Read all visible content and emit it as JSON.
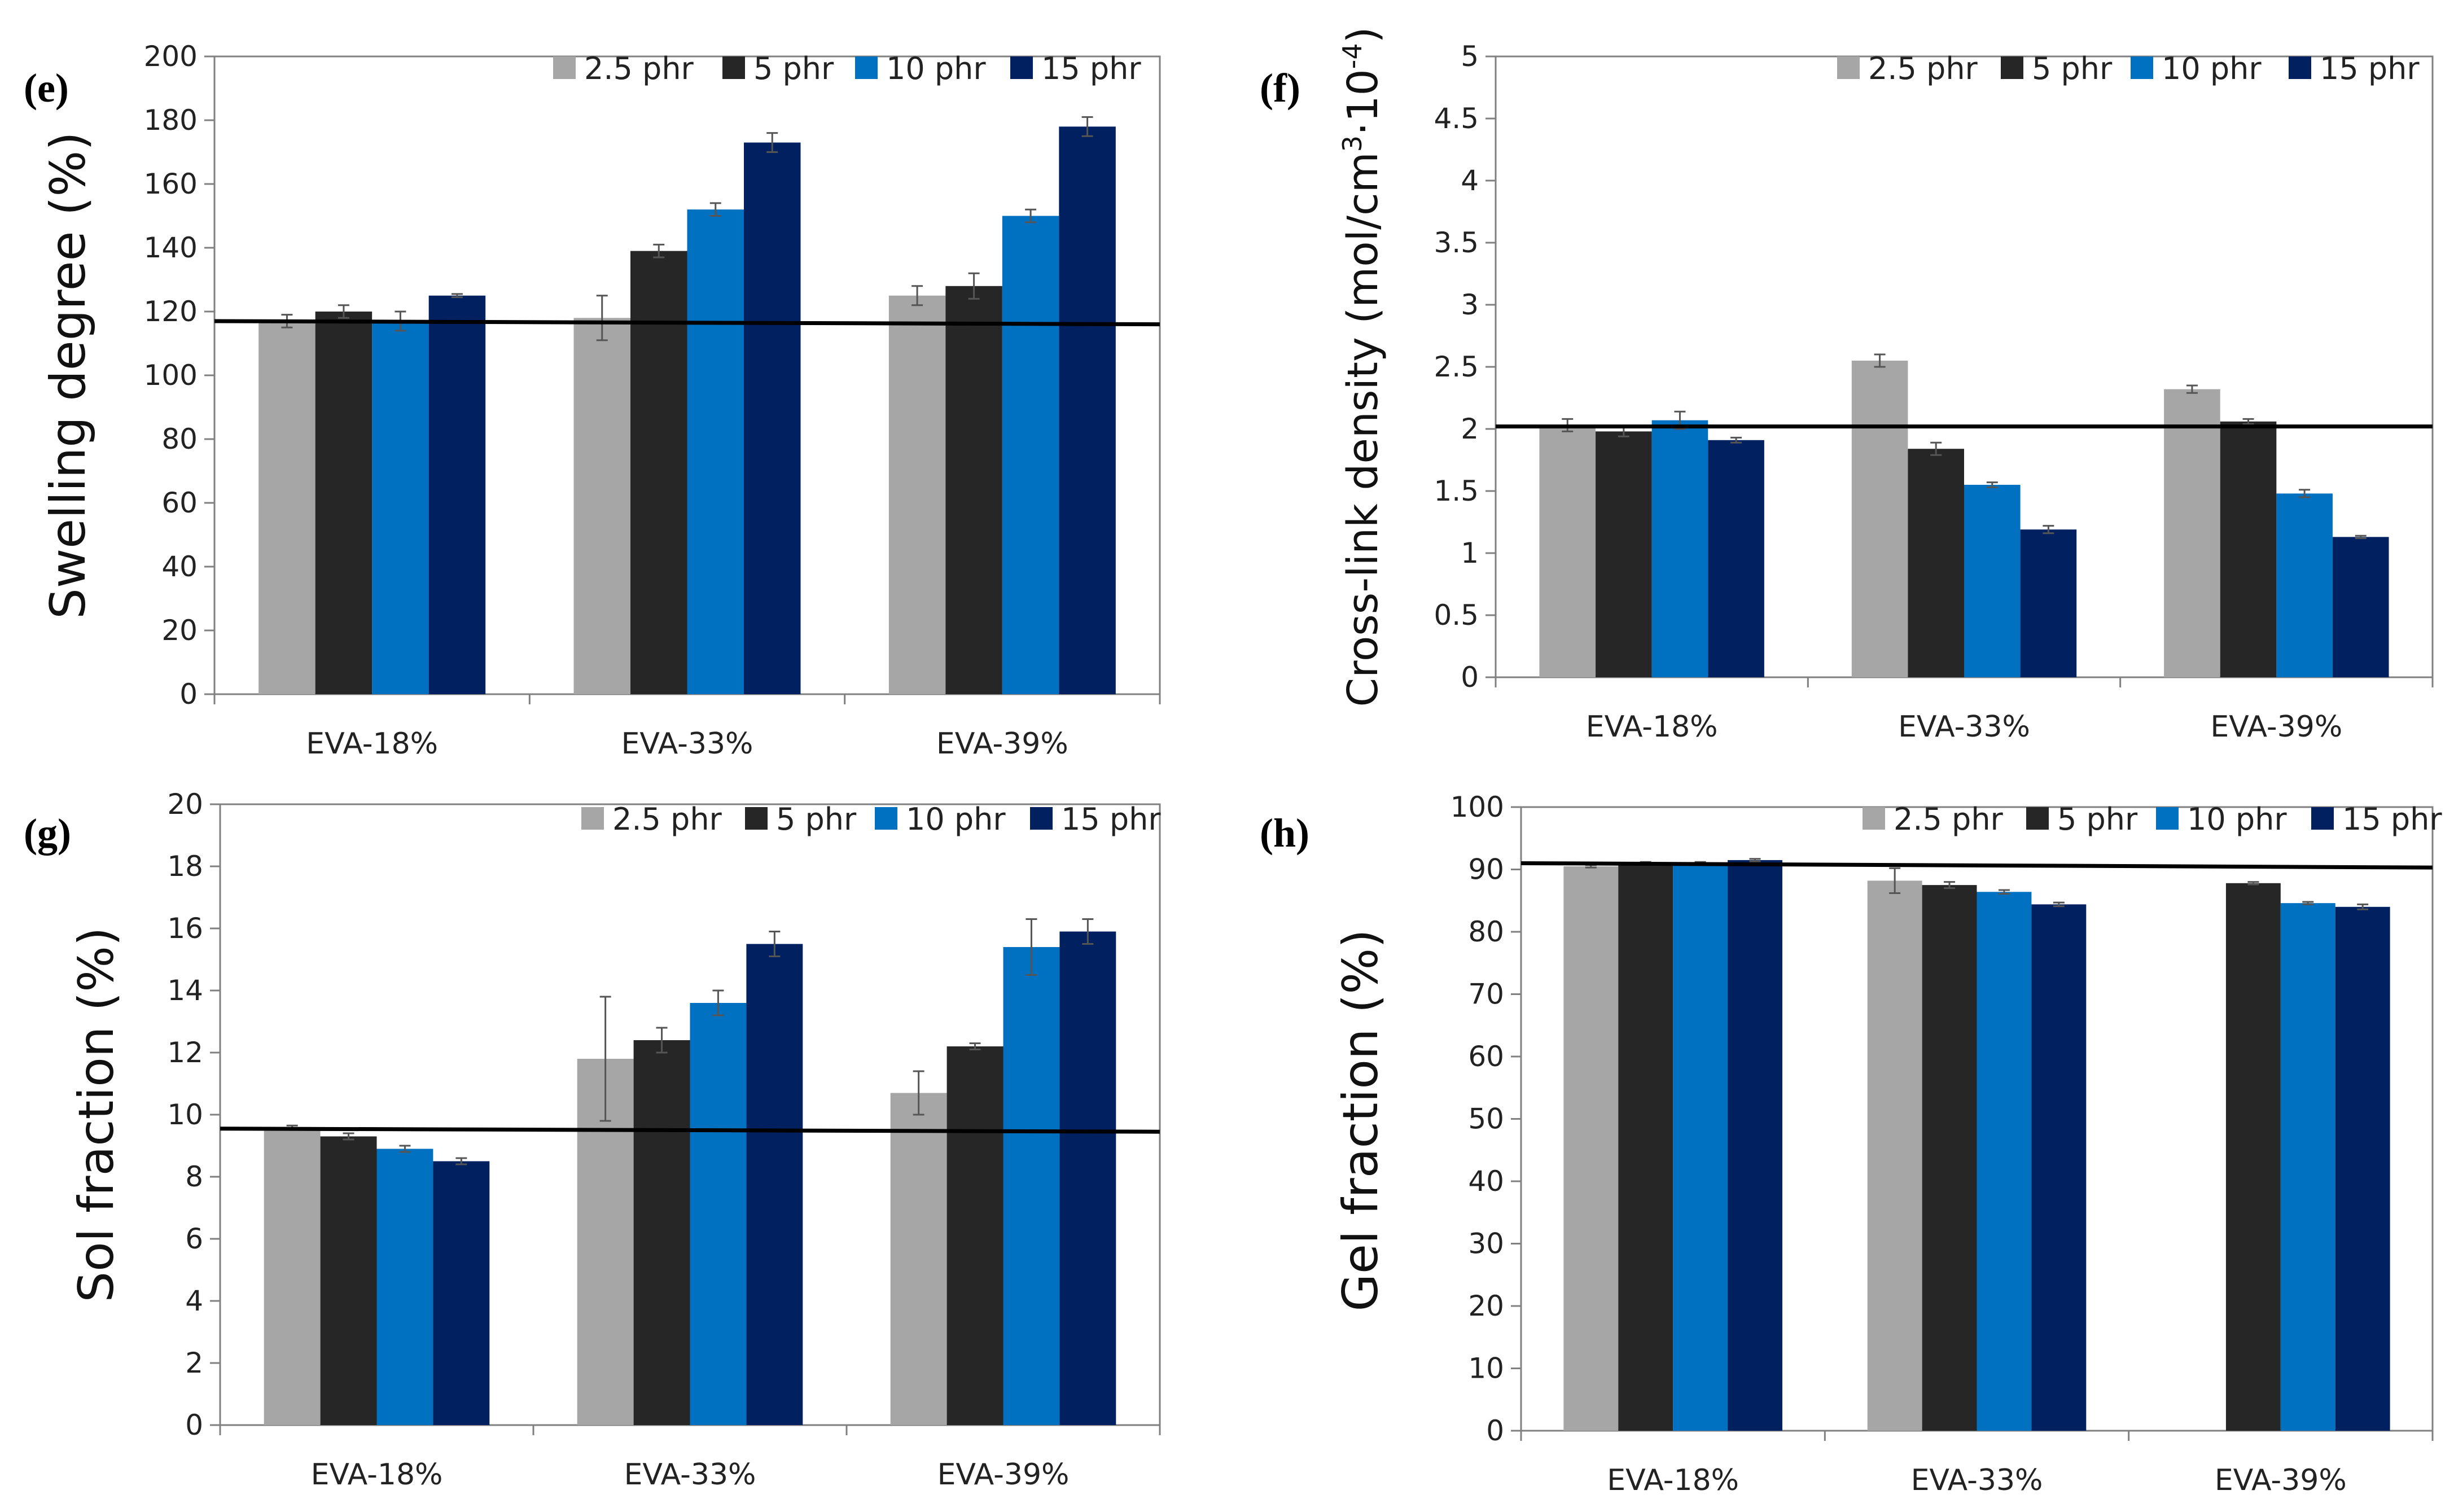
{
  "colors": {
    "series": [
      "#a6a6a6",
      "#262626",
      "#0070c0",
      "#002060"
    ],
    "axis": "#808080",
    "reference_line": "#000000",
    "error_bar": "#555555"
  },
  "chart_data": [
    {
      "type": "bar",
      "panel": "(e)",
      "ylabel": "Swelling degree (%)",
      "ylim": [
        0,
        200
      ],
      "yticks": [
        "0",
        "20",
        "40",
        "60",
        "80",
        "100",
        "120",
        "140",
        "160",
        "180",
        "200"
      ],
      "categories": [
        "EVA-18%",
        "EVA-33%",
        "EVA-39%"
      ],
      "series": [
        {
          "name": "2.5 phr",
          "values": [
            117,
            118,
            125
          ],
          "errors": [
            2,
            7,
            3
          ]
        },
        {
          "name": "5 phr",
          "values": [
            120,
            139,
            128
          ],
          "errors": [
            2,
            2,
            4
          ]
        },
        {
          "name": "10 phr",
          "values": [
            117,
            152,
            150
          ],
          "errors": [
            3,
            2,
            2
          ]
        },
        {
          "name": "15 phr",
          "values": [
            125,
            173,
            178
          ],
          "errors": [
            0.5,
            3,
            3
          ]
        }
      ],
      "reference_line": [
        117,
        116
      ],
      "legend": "top-right"
    },
    {
      "type": "bar",
      "panel": "(f)",
      "ylabel": "Cross-link density (mol/cm3·10-4)",
      "ylabel_parts": {
        "main": "Cross-link density (mol/cm",
        "sup1": "3",
        "mid": "·10",
        "sup2": "-4",
        "end": ")"
      },
      "ylim": [
        0,
        5
      ],
      "yticks": [
        "0",
        "0.5",
        "1",
        "1.5",
        "2",
        "2.5",
        "3",
        "3.5",
        "4",
        "4.5",
        "5"
      ],
      "categories": [
        "EVA-18%",
        "EVA-33%",
        "EVA-39%"
      ],
      "series": [
        {
          "name": "2.5 phr",
          "values": [
            2.03,
            2.55,
            2.32
          ],
          "errors": [
            0.05,
            0.05,
            0.03
          ]
        },
        {
          "name": "5 phr",
          "values": [
            1.98,
            1.84,
            2.06
          ],
          "errors": [
            0.04,
            0.05,
            0.02
          ]
        },
        {
          "name": "10 phr",
          "values": [
            2.07,
            1.55,
            1.48
          ],
          "errors": [
            0.07,
            0.02,
            0.03
          ]
        },
        {
          "name": "15 phr",
          "values": [
            1.91,
            1.19,
            1.13
          ],
          "errors": [
            0.02,
            0.03,
            0.01
          ]
        }
      ],
      "reference_line": [
        2.02,
        2.02
      ],
      "legend": "top-right"
    },
    {
      "type": "bar",
      "panel": "(g)",
      "ylabel": "Sol fraction (%)",
      "ylim": [
        0,
        20
      ],
      "yticks": [
        "0",
        "2",
        "4",
        "6",
        "8",
        "10",
        "12",
        "14",
        "16",
        "18",
        "20"
      ],
      "categories": [
        "EVA-18%",
        "EVA-33%",
        "EVA-39%"
      ],
      "series": [
        {
          "name": "2.5 phr",
          "values": [
            9.6,
            11.8,
            10.7
          ],
          "errors": [
            0.05,
            2.0,
            0.7
          ]
        },
        {
          "name": "5 phr",
          "values": [
            9.3,
            12.4,
            12.2
          ],
          "errors": [
            0.1,
            0.4,
            0.1
          ]
        },
        {
          "name": "10 phr",
          "values": [
            8.9,
            13.6,
            15.4
          ],
          "errors": [
            0.1,
            0.4,
            0.9
          ]
        },
        {
          "name": "15 phr",
          "values": [
            8.5,
            15.5,
            15.9
          ],
          "errors": [
            0.1,
            0.4,
            0.4
          ]
        }
      ],
      "reference_line": [
        9.55,
        9.45
      ],
      "legend": "top-right"
    },
    {
      "type": "bar",
      "panel": "(h)",
      "ylabel": "Gel fraction (%)",
      "ylim": [
        0,
        100
      ],
      "yticks": [
        "0",
        "10",
        "20",
        "30",
        "40",
        "50",
        "60",
        "70",
        "80",
        "90",
        "100"
      ],
      "categories": [
        "EVA-18%",
        "EVA-33%",
        "EVA-39%"
      ],
      "series": [
        {
          "name": "2.5 phr",
          "values": [
            90.5,
            88.2,
            null
          ],
          "errors": [
            0.2,
            2.0,
            0
          ]
        },
        {
          "name": "5 phr",
          "values": [
            91,
            87.5,
            87.8
          ],
          "errors": [
            0.2,
            0.5,
            0.2
          ]
        },
        {
          "name": "10 phr",
          "values": [
            91,
            86.4,
            84.6
          ],
          "errors": [
            0.2,
            0.3,
            0.2
          ]
        },
        {
          "name": "15 phr",
          "values": [
            91.5,
            84.4,
            84
          ],
          "errors": [
            0.2,
            0.3,
            0.4
          ]
        }
      ],
      "reference_line": [
        91,
        90.3
      ],
      "legend": "top-right"
    }
  ]
}
